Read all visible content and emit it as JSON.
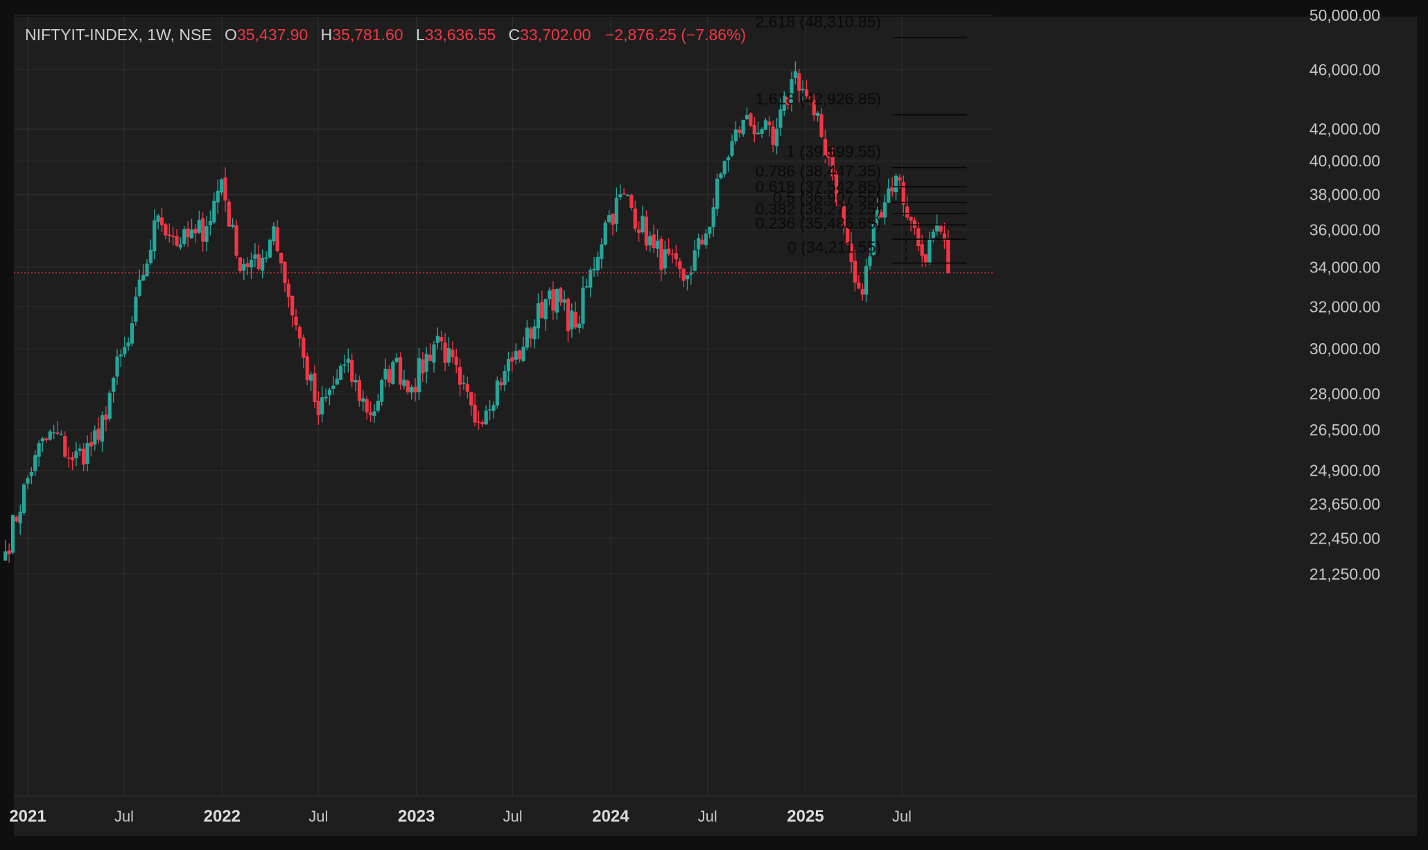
{
  "header": {
    "symbol": "NIFTYIT-INDEX, 1W, NSE",
    "open_label": "O",
    "open": "35,437.90",
    "high_label": "H",
    "high": "35,781.60",
    "low_label": "L",
    "low": "33,636.55",
    "close_label": "C",
    "close": "33,702.00",
    "change": "−2,876.25 (−7.86%)"
  },
  "colors": {
    "up": "#26a69a",
    "down": "#f23645",
    "background": "#1e1e1e",
    "grid": "#2c2c2c",
    "text": "#c8c8c8",
    "price_line": "#f23645"
  },
  "chart_data": {
    "type": "candlestick",
    "scale": "log",
    "interval": "1W",
    "y_ticks": [
      21250,
      22450,
      23650,
      24900,
      26500,
      28000,
      30000,
      32000,
      34000,
      36000,
      38000,
      40000,
      42000,
      46000,
      50000
    ],
    "y_tick_labels": [
      "21,250.00",
      "22,450.00",
      "23,650.00",
      "24,900.00",
      "26,500.00",
      "28,000.00",
      "30,000.00",
      "32,000.00",
      "34,000.00",
      "36,000.00",
      "38,000.00",
      "40,000.00",
      "42,000.00",
      "46,000.00",
      "50,000.00"
    ],
    "x_ticks": [
      {
        "label": "2021",
        "bold": true,
        "date": "2021-01-01"
      },
      {
        "label": "Jul",
        "bold": false,
        "date": "2021-07-01"
      },
      {
        "label": "2022",
        "bold": true,
        "date": "2022-01-01"
      },
      {
        "label": "Jul",
        "bold": false,
        "date": "2022-07-01"
      },
      {
        "label": "2023",
        "bold": true,
        "date": "2023-01-01"
      },
      {
        "label": "Jul",
        "bold": false,
        "date": "2023-07-01"
      },
      {
        "label": "2024",
        "bold": true,
        "date": "2024-01-01"
      },
      {
        "label": "Jul",
        "bold": false,
        "date": "2024-07-01"
      },
      {
        "label": "2025",
        "bold": true,
        "date": "2025-01-01"
      },
      {
        "label": "Jul",
        "bold": false,
        "date": "2025-07-01"
      }
    ],
    "last_close": 33702.0,
    "anchors": [
      {
        "date": "2020-11-20",
        "close": 22000
      },
      {
        "date": "2021-01-15",
        "close": 25500
      },
      {
        "date": "2021-02-19",
        "close": 26400
      },
      {
        "date": "2021-03-26",
        "close": 25300
      },
      {
        "date": "2021-05-14",
        "close": 26100
      },
      {
        "date": "2021-06-11",
        "close": 28700
      },
      {
        "date": "2021-07-09",
        "close": 30300
      },
      {
        "date": "2021-08-06",
        "close": 33600
      },
      {
        "date": "2021-09-03",
        "close": 36800
      },
      {
        "date": "2021-10-15",
        "close": 35200
      },
      {
        "date": "2021-11-12",
        "close": 35800
      },
      {
        "date": "2021-12-03",
        "close": 36200
      },
      {
        "date": "2021-12-31",
        "close": 38900
      },
      {
        "date": "2022-01-28",
        "close": 34600
      },
      {
        "date": "2022-03-11",
        "close": 33900
      },
      {
        "date": "2022-04-08",
        "close": 36200
      },
      {
        "date": "2022-04-22",
        "close": 34200
      },
      {
        "date": "2022-06-03",
        "close": 29600
      },
      {
        "date": "2022-07-01",
        "close": 27100
      },
      {
        "date": "2022-08-19",
        "close": 29300
      },
      {
        "date": "2022-10-07",
        "close": 27100
      },
      {
        "date": "2022-11-18",
        "close": 29400
      },
      {
        "date": "2022-12-23",
        "close": 28300
      },
      {
        "date": "2023-02-10",
        "close": 30600
      },
      {
        "date": "2023-03-24",
        "close": 28400
      },
      {
        "date": "2023-04-21",
        "close": 26800
      },
      {
        "date": "2023-06-16",
        "close": 29000
      },
      {
        "date": "2023-07-21",
        "close": 30100
      },
      {
        "date": "2023-09-08",
        "close": 32800
      },
      {
        "date": "2023-10-27",
        "close": 31000
      },
      {
        "date": "2023-12-22",
        "close": 36400
      },
      {
        "date": "2024-01-26",
        "close": 38000
      },
      {
        "date": "2024-03-22",
        "close": 35000
      },
      {
        "date": "2024-05-17",
        "close": 33300
      },
      {
        "date": "2024-06-28",
        "close": 35800
      },
      {
        "date": "2024-08-02",
        "close": 40000
      },
      {
        "date": "2024-09-06",
        "close": 42600
      },
      {
        "date": "2024-10-11",
        "close": 42000
      },
      {
        "date": "2024-11-01",
        "close": 41000
      },
      {
        "date": "2024-12-13",
        "close": 45900
      },
      {
        "date": "2025-01-17",
        "close": 42900
      },
      {
        "date": "2025-02-14",
        "close": 40200
      },
      {
        "date": "2025-03-14",
        "close": 36200
      },
      {
        "date": "2025-04-04",
        "close": 33200
      },
      {
        "date": "2025-04-18",
        "close": 32600
      },
      {
        "date": "2025-05-16",
        "close": 37100
      },
      {
        "date": "2025-06-20",
        "close": 39100
      },
      {
        "date": "2025-07-18",
        "close": 36500
      },
      {
        "date": "2025-08-08",
        "close": 34600
      },
      {
        "date": "2025-09-12",
        "close": 35900
      },
      {
        "date": "2025-09-26",
        "close": 33702
      }
    ],
    "fibonacci": {
      "start_date": "2025-06-13",
      "end_date": "2025-10-31",
      "levels": [
        {
          "ratio": "2.618",
          "price": 48310.85,
          "label": "2.618 (48,310.85)"
        },
        {
          "ratio": "1.618",
          "price": 42926.85,
          "label": "1.618 (42,926.85)"
        },
        {
          "ratio": "1",
          "price": 39599.55,
          "label": "1 (39,599.55)"
        },
        {
          "ratio": "0.786",
          "price": 38447.35,
          "label": "0.786 (38,447.35)"
        },
        {
          "ratio": "0.618",
          "price": 37542.85,
          "label": "0.618 (37,542.85)"
        },
        {
          "ratio": "0.5",
          "price": 36907.55,
          "label": "0.5 (36,907.55)"
        },
        {
          "ratio": "0.382",
          "price": 36272.25,
          "label": "0.382 (36,272.25)"
        },
        {
          "ratio": "0.236",
          "price": 35486.65,
          "label": "0.236 (35,486.65)"
        },
        {
          "ratio": "0",
          "price": 34211.55,
          "label": "0 (34,211.55)"
        }
      ]
    }
  }
}
